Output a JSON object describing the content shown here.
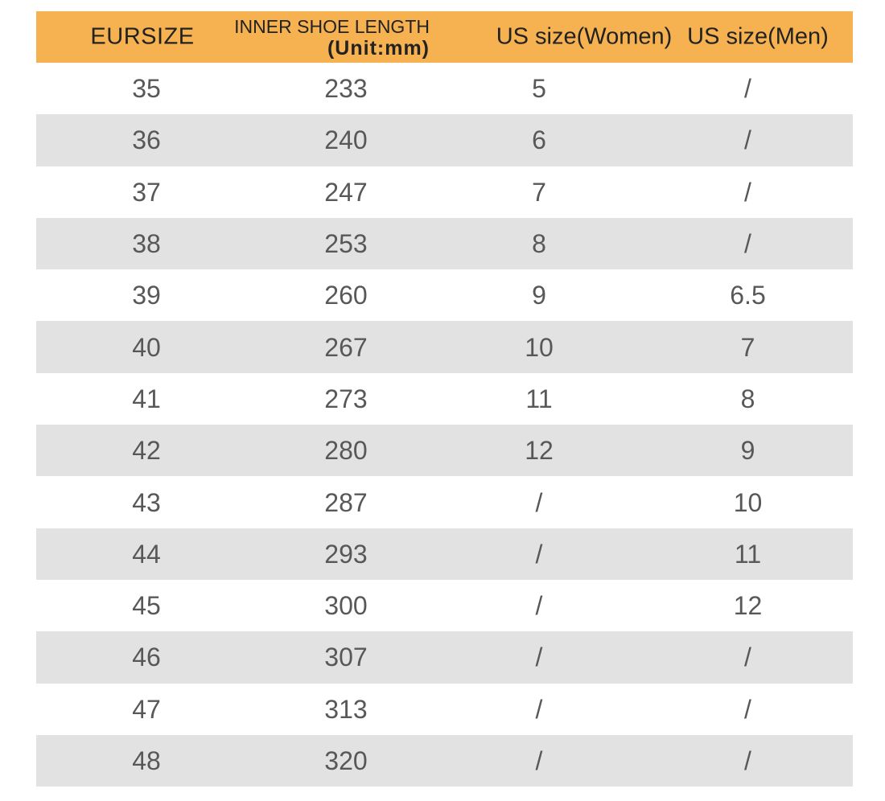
{
  "table": {
    "accent_color": "#F6B151",
    "alt_row_color": "#E2E2E2",
    "data_text_color": "#58585A",
    "header_text_color": "#222222",
    "headers": {
      "eursize": "EURSIZE",
      "inner_length_line1": "INNER SHOE LENGTH",
      "inner_length_line2": "(Unit:mm)",
      "us_women": "US size(Women)",
      "us_men": "US size(Men)"
    },
    "rows": [
      [
        "35",
        "233",
        "5",
        "/"
      ],
      [
        "36",
        "240",
        "6",
        "/"
      ],
      [
        "37",
        "247",
        "7",
        "/"
      ],
      [
        "38",
        "253",
        "8",
        "/"
      ],
      [
        "39",
        "260",
        "9",
        "6.5"
      ],
      [
        "40",
        "267",
        "10",
        "7"
      ],
      [
        "41",
        "273",
        "11",
        "8"
      ],
      [
        "42",
        "280",
        "12",
        "9"
      ],
      [
        "43",
        "287",
        "/",
        "10"
      ],
      [
        "44",
        "293",
        "/",
        "11"
      ],
      [
        "45",
        "300",
        "/",
        "12"
      ],
      [
        "46",
        "307",
        "/",
        "/"
      ],
      [
        "47",
        "313",
        "/",
        "/"
      ],
      [
        "48",
        "320",
        "/",
        "/"
      ]
    ]
  },
  "chart_data": {
    "type": "table",
    "title": "",
    "columns": [
      "EURSIZE",
      "INNER SHOE LENGTH (Unit:mm)",
      "US size(Women)",
      "US size(Men)"
    ],
    "rows": [
      [
        "35",
        "233",
        "5",
        "/"
      ],
      [
        "36",
        "240",
        "6",
        "/"
      ],
      [
        "37",
        "247",
        "7",
        "/"
      ],
      [
        "38",
        "253",
        "8",
        "/"
      ],
      [
        "39",
        "260",
        "9",
        "6.5"
      ],
      [
        "40",
        "267",
        "10",
        "7"
      ],
      [
        "41",
        "273",
        "11",
        "8"
      ],
      [
        "42",
        "280",
        "12",
        "9"
      ],
      [
        "43",
        "287",
        "/",
        "10"
      ],
      [
        "44",
        "293",
        "/",
        "11"
      ],
      [
        "45",
        "300",
        "/",
        "12"
      ],
      [
        "46",
        "307",
        "/",
        "/"
      ],
      [
        "47",
        "313",
        "/",
        "/"
      ],
      [
        "48",
        "320",
        "/",
        "/"
      ]
    ],
    "layout": {
      "header_background": "#F6B151",
      "alternating_rows": true,
      "first_data_row_background": "#FFFFFF",
      "alternate_row_background": "#E2E2E2",
      "grid": "none"
    }
  }
}
